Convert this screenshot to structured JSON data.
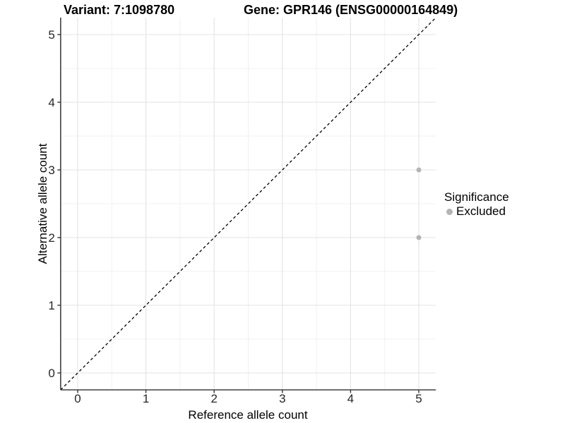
{
  "chart_data": {
    "type": "scatter",
    "title_left": "Variant: 7:1098780",
    "title_right": "Gene: GPR146 (ENSG00000164849)",
    "xlabel": "Reference allele count",
    "ylabel": "Alternative allele count",
    "xlim": [
      -0.25,
      5.25
    ],
    "ylim": [
      -0.25,
      5.25
    ],
    "xticks": [
      0,
      1,
      2,
      3,
      4,
      5
    ],
    "yticks": [
      0,
      1,
      2,
      3,
      4,
      5
    ],
    "grid": "major and minor gridlines on",
    "legend_position": "right",
    "series": [
      {
        "name": "Excluded",
        "points": [
          [
            5,
            3
          ],
          [
            5,
            2
          ]
        ],
        "color": "#b4b4b4"
      }
    ],
    "reference_line": {
      "type": "identity y=x",
      "style": "dashed",
      "color": "#000000",
      "from": -0.25,
      "to": 5.25
    }
  },
  "legend": {
    "title": "Significance",
    "items": [
      {
        "label": "Excluded",
        "marker": "circle",
        "color": "#b4b4b4"
      }
    ]
  },
  "colors": {
    "background": "#ffffff",
    "point": "#b4b4b4",
    "grid_major": "#e3e3e3",
    "grid_minor": "#f1f1f1",
    "axis_line": "#404040",
    "tick_mark": "#333333",
    "tick_label": "#262626",
    "text": "#000000"
  }
}
